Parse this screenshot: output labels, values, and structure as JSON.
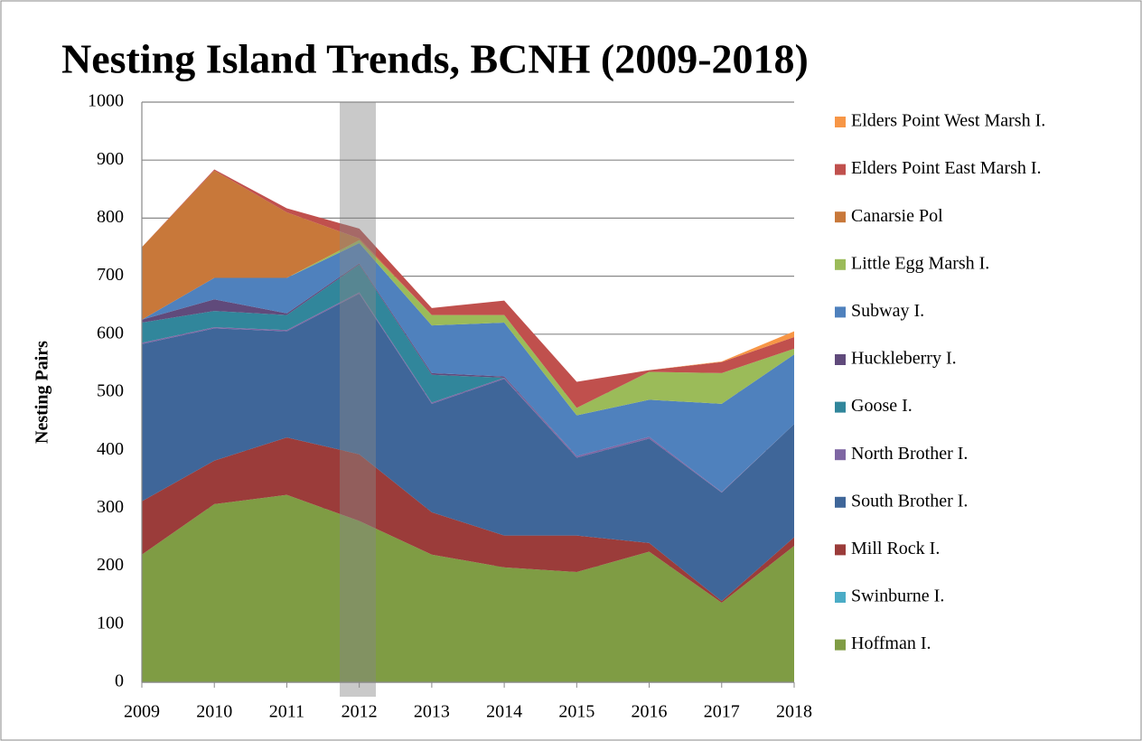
{
  "chart_data": {
    "type": "stacked_area",
    "title": "Nesting Island Trends, BCNH (2009-2018)",
    "y_label": "Nesting Pairs",
    "x": [
      2009,
      2010,
      2011,
      2012,
      2013,
      2014,
      2015,
      2016,
      2017,
      2018
    ],
    "xlim": [
      2009,
      2018
    ],
    "ylim": [
      0,
      1000
    ],
    "yticks": [
      0,
      100,
      200,
      300,
      400,
      500,
      600,
      700,
      800,
      900,
      1000
    ],
    "grid": true,
    "legend": "right",
    "series": [
      {
        "name": "Hoffman I.",
        "color": "#7f9c44",
        "values": [
          220,
          307,
          323,
          278,
          220,
          198,
          190,
          225,
          137,
          235
        ]
      },
      {
        "name": "Swinburne I.",
        "color": "#4bacc6",
        "values": [
          0,
          0,
          0,
          0,
          0,
          0,
          0,
          0,
          0,
          0
        ]
      },
      {
        "name": "Mill Rock I.",
        "color": "#9b3c3a",
        "values": [
          92,
          75,
          99,
          115,
          73,
          55,
          63,
          15,
          3,
          15
        ]
      },
      {
        "name": "South Brother I.",
        "color": "#3f6699",
        "values": [
          271,
          228,
          183,
          277,
          187,
          270,
          134,
          180,
          187,
          195
        ]
      },
      {
        "name": "North Brother I.",
        "color": "#7e66a3",
        "values": [
          2,
          2,
          2,
          2,
          2,
          2,
          3,
          3,
          1,
          0
        ]
      },
      {
        "name": "Goose I.",
        "color": "#31869b",
        "values": [
          35,
          28,
          26,
          48,
          48,
          0,
          0,
          0,
          0,
          0
        ]
      },
      {
        "name": "Huckleberry I.",
        "color": "#604a7b",
        "values": [
          5,
          20,
          3,
          2,
          3,
          2,
          0,
          0,
          0,
          0
        ]
      },
      {
        "name": "Subway I.",
        "color": "#4f81bd",
        "values": [
          0,
          37,
          61,
          35,
          82,
          93,
          70,
          64,
          152,
          120
        ]
      },
      {
        "name": "Little Egg Marsh I.",
        "color": "#9bbb59",
        "values": [
          0,
          0,
          0,
          5,
          18,
          13,
          13,
          48,
          53,
          10
        ]
      },
      {
        "name": "Canarsie Pol",
        "color": "#c8783a",
        "values": [
          125,
          185,
          113,
          3,
          0,
          0,
          0,
          0,
          0,
          0
        ]
      },
      {
        "name": "Elders Point East Marsh I.",
        "color": "#c0504d",
        "values": [
          0,
          2,
          7,
          17,
          12,
          25,
          45,
          3,
          19,
          20
        ]
      },
      {
        "name": "Elders Point West Marsh I.",
        "color": "#f79646",
        "values": [
          0,
          0,
          0,
          0,
          0,
          0,
          0,
          0,
          1,
          10
        ]
      }
    ]
  }
}
